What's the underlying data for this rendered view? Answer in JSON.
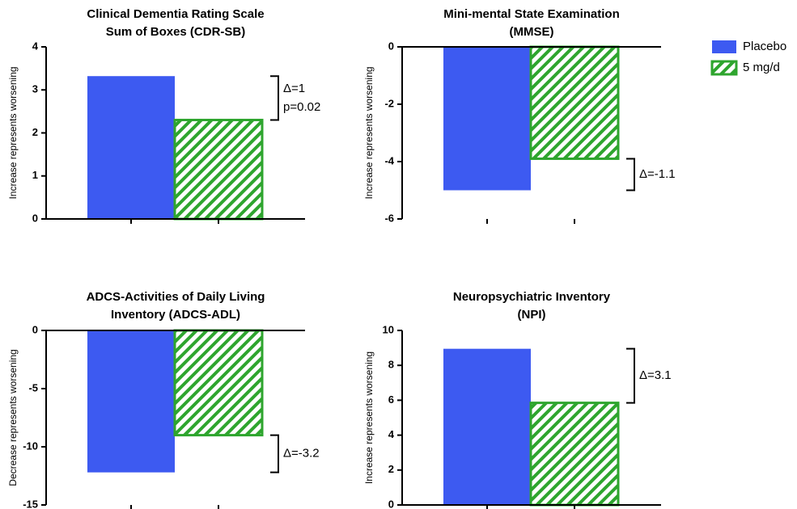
{
  "legend": [
    {
      "name": "Placebo",
      "color": "#3d5af1",
      "hatch": false
    },
    {
      "name": "5 mg/d",
      "color": "#2ea52e",
      "hatch": true
    }
  ],
  "chart_data": [
    {
      "type": "bar",
      "title": [
        "Clinical Dementia Rating Scale",
        "Sum of Boxes (CDR-SB)"
      ],
      "ylabel": "Increase represents worsening",
      "values": [
        3.32,
        2.3
      ],
      "ylim": [
        0,
        4
      ],
      "yticks": [
        0,
        1,
        2,
        3,
        4
      ],
      "annotations": [
        "Δ=1",
        "p=0.02"
      ]
    },
    {
      "type": "bar",
      "title": [
        "Mini-mental State Examination",
        "(MMSE)"
      ],
      "ylabel": "Increase represents worsening",
      "values": [
        -5.0,
        -3.9
      ],
      "ylim": [
        -6,
        0
      ],
      "yticks": [
        -6,
        -4,
        -2,
        0
      ],
      "annotations": [
        "Δ=-1.1"
      ]
    },
    {
      "type": "bar",
      "title": [
        "ADCS-Activities of Daily Living",
        "Inventory (ADCS-ADL)"
      ],
      "ylabel": "Decrease represents worsening",
      "values": [
        -12.2,
        -9.0
      ],
      "ylim": [
        -15,
        0
      ],
      "yticks": [
        -15,
        -10,
        -5,
        0
      ],
      "annotations": [
        "Δ=-3.2"
      ]
    },
    {
      "type": "bar",
      "title": [
        "Neuropsychiatric Inventory",
        "(NPI)"
      ],
      "ylabel": "Increase represents worsening",
      "values": [
        8.95,
        5.85
      ],
      "ylim": [
        0,
        10
      ],
      "yticks": [
        0,
        2,
        4,
        6,
        8,
        10
      ],
      "annotations": [
        "Δ=3.1"
      ]
    }
  ]
}
